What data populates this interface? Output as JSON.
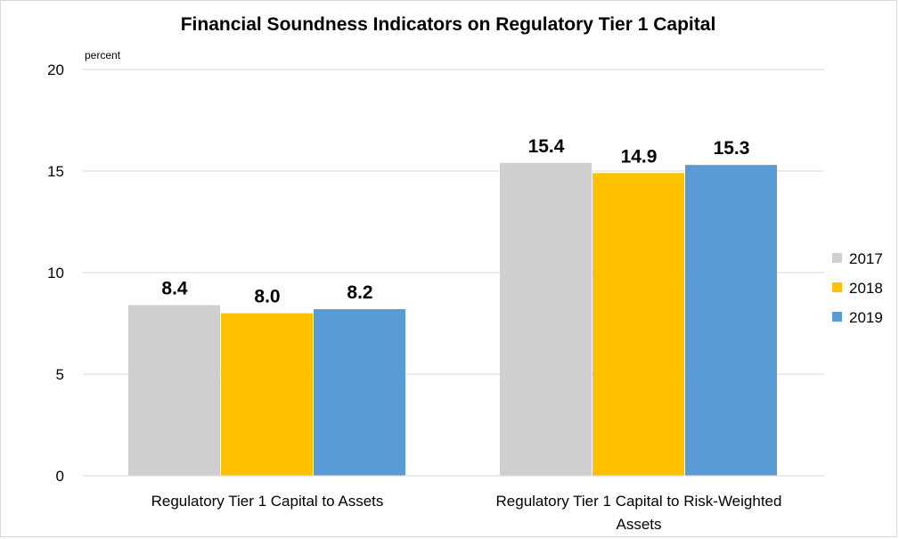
{
  "chart_data": {
    "type": "bar",
    "title": "Financial Soundness Indicators on Regulatory Tier 1 Capital",
    "unit_label": "percent",
    "xlabel": "",
    "ylabel": "",
    "categories": [
      [
        "Regulatory Tier 1 Capital to Assets"
      ],
      [
        "Regulatory Tier 1 Capital to Risk-Weighted",
        "Assets"
      ]
    ],
    "series": [
      {
        "name": "2017",
        "color": "#D0CECE",
        "values": [
          8.4,
          15.4
        ],
        "labels": [
          "8.4",
          "15.4"
        ]
      },
      {
        "name": "2018",
        "color": "#FFC000",
        "values": [
          8.0,
          14.9
        ],
        "labels": [
          "8.0",
          "14.9"
        ]
      },
      {
        "name": "2019",
        "color": "#5B9BD5",
        "values": [
          8.2,
          15.3
        ],
        "labels": [
          "8.2",
          "15.3"
        ]
      }
    ],
    "ylim": [
      0,
      20
    ],
    "yticks": [
      0,
      5,
      10,
      15,
      20
    ],
    "grid": true,
    "legend_position": "right"
  }
}
